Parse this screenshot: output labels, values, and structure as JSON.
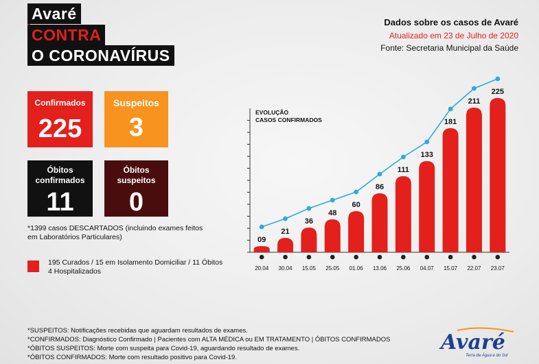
{
  "header": {
    "title_lines": [
      "Avaré",
      "CONTRA",
      "O CORONAVÍRUS"
    ],
    "subtitle": "Dados sobre os casos de Avaré",
    "updated": "Atualizado em 23 de Julho de 2020",
    "source": "Fonte: Secretaria Municipal da Saúde"
  },
  "stats": {
    "confirmed": {
      "label": "Confirmados",
      "value": "225"
    },
    "suspected": {
      "label": "Suspeitos",
      "value": "3"
    },
    "deaths_confirmed": {
      "label_1": "Óbitos",
      "label_2": "confirmados",
      "value": "11"
    },
    "deaths_suspected": {
      "label_1": "Óbitos",
      "label_2": "suspeitos",
      "value": "0"
    }
  },
  "discarded_note": [
    "*1399 casos DESCARTADOS (incluindo exames feitos",
    "em Laboratórios Particulares)"
  ],
  "legend": [
    "195 Curados / 15 em Isolamento Domiciliar / 11 Óbitos",
    "4 Hospitalizados"
  ],
  "footnotes": [
    "*SUSPEITOS: Notificações recebidas que aguardam resultados de exames.",
    "*CONFIRMADOS: Diagnóstico Confirmado | Pacientes com ALTA MÉDICA ou EM TRATAMENTO | ÓBITOS CONFIRMADOS",
    "*ÓBITOS SUSPEITOS: Morte com suspeita para Covid-19, aguardando resultado de exames.",
    "*ÓBITOS CONFIRMADOS: Morte com resultado positivo para Covid-19."
  ],
  "logo": {
    "text": "Avaré",
    "tagline": "Terra da Água e do Sol"
  },
  "colors": {
    "red": "#e3201b",
    "orange": "#f7931e",
    "black": "#111111",
    "darkred": "#4a0d0d",
    "line": "#29abe2"
  },
  "chart_data": {
    "type": "bar",
    "title": "EVOLUÇÃO\nCASOS CONFIRMADOS",
    "categories": [
      "20.04",
      "30.04",
      "15.05",
      "25.05",
      "01.06",
      "13.06",
      "25.06",
      "04.07",
      "15.07",
      "22.07",
      "23.07"
    ],
    "values": [
      9,
      21,
      36,
      48,
      60,
      86,
      111,
      133,
      181,
      211,
      225
    ],
    "labels": [
      "09",
      "21",
      "36",
      "48",
      "60",
      "86",
      "111",
      "133",
      "181",
      "211",
      "225"
    ],
    "ylim": [
      0,
      240
    ],
    "overlay": "line"
  }
}
